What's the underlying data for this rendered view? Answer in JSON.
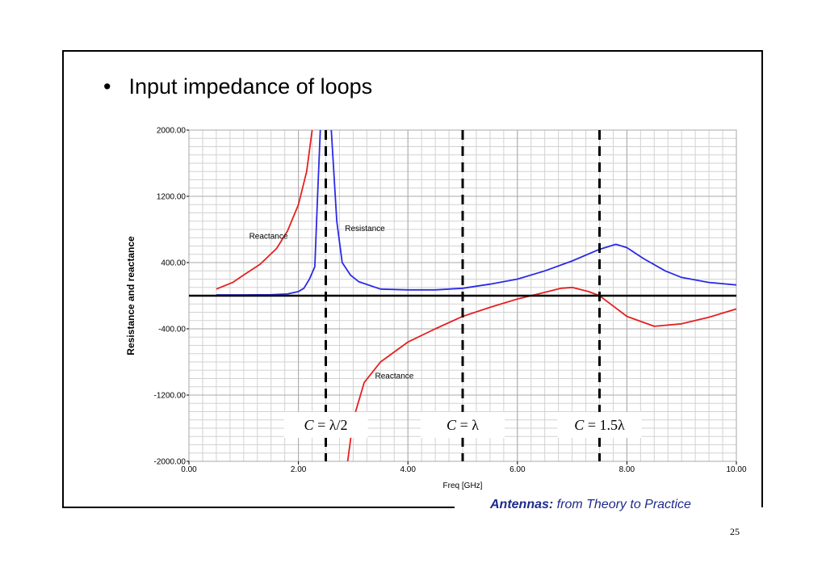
{
  "slide": {
    "bullet": "Input impedance of loops",
    "footer_bold": "Antennas:",
    "footer_rest": " from Theory to Practice",
    "page_number": "25"
  },
  "chart_data": {
    "type": "line",
    "title": "",
    "xlabel": "Freq [GHz]",
    "ylabel": "Resistance and reactance",
    "xlim": [
      0,
      10
    ],
    "ylim": [
      -2000,
      2000
    ],
    "xticks": [
      {
        "value": 0,
        "label": "0.00"
      },
      {
        "value": 2,
        "label": "2.00"
      },
      {
        "value": 4,
        "label": "4.00"
      },
      {
        "value": 6,
        "label": "6.00"
      },
      {
        "value": 8,
        "label": "8.00"
      },
      {
        "value": 10,
        "label": "10.00"
      }
    ],
    "yticks": [
      {
        "value": 2000,
        "label": "2000.00"
      },
      {
        "value": 1200,
        "label": "1200.00"
      },
      {
        "value": 400,
        "label": "400.00"
      },
      {
        "value": -400,
        "label": "-400.00"
      },
      {
        "value": -1200,
        "label": "-1200.00"
      },
      {
        "value": -2000,
        "label": "-2000.00"
      }
    ],
    "grid": true,
    "zero_line": true,
    "series": [
      {
        "name": "Resistance",
        "color": "#2a2ae6",
        "segments": [
          [
            [
              0.5,
              10
            ],
            [
              1.0,
              10
            ],
            [
              1.5,
              12
            ],
            [
              1.8,
              20
            ],
            [
              2.0,
              50
            ],
            [
              2.1,
              90
            ],
            [
              2.2,
              200
            ],
            [
              2.3,
              350
            ],
            [
              2.35,
              1200
            ],
            [
              2.4,
              2000
            ]
          ],
          [
            [
              2.6,
              2000
            ],
            [
              2.7,
              900
            ],
            [
              2.8,
              400
            ],
            [
              2.95,
              250
            ],
            [
              3.1,
              170
            ],
            [
              3.5,
              80
            ],
            [
              4.0,
              70
            ],
            [
              4.5,
              70
            ],
            [
              5.0,
              90
            ],
            [
              5.5,
              140
            ],
            [
              6.0,
              200
            ],
            [
              6.5,
              300
            ],
            [
              7.0,
              420
            ],
            [
              7.5,
              560
            ],
            [
              7.8,
              620
            ],
            [
              8.0,
              580
            ],
            [
              8.3,
              450
            ],
            [
              8.7,
              300
            ],
            [
              9.0,
              220
            ],
            [
              9.5,
              160
            ],
            [
              10.0,
              130
            ]
          ]
        ]
      },
      {
        "name": "Reactance",
        "color": "#e52020",
        "segments": [
          [
            [
              0.5,
              80
            ],
            [
              0.8,
              160
            ],
            [
              1.0,
              250
            ],
            [
              1.3,
              380
            ],
            [
              1.6,
              570
            ],
            [
              1.8,
              780
            ],
            [
              2.0,
              1100
            ],
            [
              2.15,
              1500
            ],
            [
              2.25,
              2000
            ]
          ],
          [
            [
              2.9,
              -2000
            ],
            [
              3.0,
              -1500
            ],
            [
              3.2,
              -1050
            ],
            [
              3.5,
              -800
            ],
            [
              4.0,
              -560
            ],
            [
              4.5,
              -400
            ],
            [
              5.0,
              -250
            ],
            [
              5.5,
              -140
            ],
            [
              6.0,
              -40
            ],
            [
              6.5,
              40
            ],
            [
              6.8,
              90
            ],
            [
              7.0,
              100
            ],
            [
              7.3,
              50
            ],
            [
              7.5,
              0
            ],
            [
              7.7,
              -100
            ],
            [
              8.0,
              -250
            ],
            [
              8.5,
              -370
            ],
            [
              9.0,
              -340
            ],
            [
              9.5,
              -260
            ],
            [
              10.0,
              -160
            ]
          ]
        ]
      }
    ],
    "vlines": [
      2.5,
      5.0,
      7.5
    ],
    "annotations": [
      {
        "text": "Reactance",
        "x": 1.1,
        "y": 690
      },
      {
        "text": "Resistance",
        "x": 2.85,
        "y": 780
      },
      {
        "text": "Reactance",
        "x": 3.4,
        "y": -1000
      }
    ],
    "circumference_labels": [
      {
        "variable": "C",
        "value": "= λ/2",
        "x": 2.5
      },
      {
        "variable": "C",
        "value": "= λ",
        "x": 5.0
      },
      {
        "variable": "C",
        "value": "= 1.5λ",
        "x": 7.5
      }
    ]
  }
}
